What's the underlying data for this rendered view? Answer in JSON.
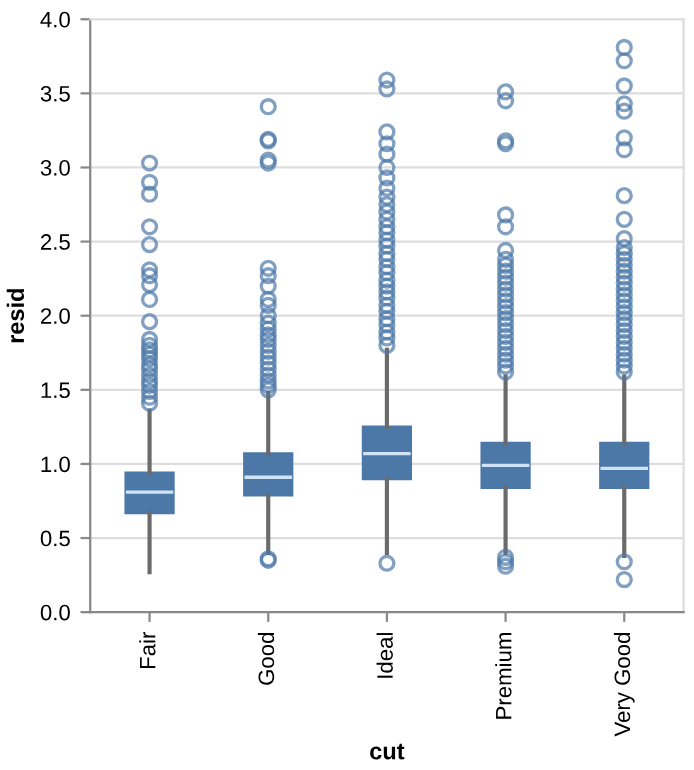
{
  "chart_data": {
    "type": "box",
    "xlabel": "cut",
    "ylabel": "resid",
    "categories": [
      "Fair",
      "Good",
      "Ideal",
      "Premium",
      "Very Good"
    ],
    "color": "#4c78a8",
    "boxes": [
      {
        "low": 0.27,
        "q1": 0.67,
        "median": 0.81,
        "q3": 0.94,
        "high": 1.36,
        "outliers": [
          1.41,
          1.45,
          1.49,
          1.53,
          1.56,
          1.6,
          1.64,
          1.67,
          1.71,
          1.74,
          1.77,
          1.8,
          1.84,
          1.96,
          2.11,
          2.21,
          2.27,
          2.31,
          2.48,
          2.6,
          2.82,
          2.9,
          3.03
        ]
      },
      {
        "low": 0.4,
        "q1": 0.79,
        "median": 0.91,
        "q3": 1.07,
        "high": 1.48,
        "outliers": [
          0.35,
          0.36,
          1.5,
          1.53,
          1.56,
          1.6,
          1.64,
          1.68,
          1.72,
          1.76,
          1.8,
          1.84,
          1.87,
          1.91,
          1.95,
          2.0,
          2.07,
          2.11,
          2.2,
          2.27,
          2.32,
          3.03,
          3.05,
          3.18,
          3.19,
          3.41
        ]
      },
      {
        "low": 0.4,
        "q1": 0.9,
        "median": 1.07,
        "q3": 1.25,
        "high": 1.77,
        "outliers": [
          0.33,
          1.8,
          1.85,
          1.89,
          1.94,
          1.98,
          2.03,
          2.07,
          2.12,
          2.16,
          2.2,
          2.24,
          2.29,
          2.33,
          2.38,
          2.42,
          2.47,
          2.51,
          2.56,
          2.6,
          2.65,
          2.7,
          2.75,
          2.8,
          2.86,
          2.93,
          3.0,
          3.09,
          3.16,
          3.24,
          3.53,
          3.59
        ]
      },
      {
        "low": 0.4,
        "q1": 0.84,
        "median": 0.99,
        "q3": 1.14,
        "high": 1.59,
        "outliers": [
          0.31,
          0.34,
          0.37,
          1.62,
          1.66,
          1.7,
          1.74,
          1.78,
          1.82,
          1.86,
          1.9,
          1.94,
          1.98,
          2.02,
          2.06,
          2.1,
          2.14,
          2.18,
          2.22,
          2.26,
          2.3,
          2.34,
          2.38,
          2.44,
          2.6,
          2.68,
          3.16,
          3.18,
          3.45,
          3.51
        ]
      },
      {
        "low": 0.38,
        "q1": 0.84,
        "median": 0.97,
        "q3": 1.14,
        "high": 1.59,
        "outliers": [
          0.22,
          0.34,
          1.62,
          1.66,
          1.7,
          1.74,
          1.78,
          1.82,
          1.86,
          1.9,
          1.94,
          1.98,
          2.02,
          2.06,
          2.1,
          2.14,
          2.18,
          2.22,
          2.26,
          2.3,
          2.34,
          2.38,
          2.42,
          2.46,
          2.52,
          2.65,
          2.81,
          3.12,
          3.2,
          3.38,
          3.43,
          3.55,
          3.72,
          3.81
        ]
      }
    ],
    "ylim": [
      0.0,
      4.0
    ],
    "yticks": [
      {
        "value": 0,
        "label": "0.0"
      },
      0.5,
      {
        "value": 1,
        "label": "1.0"
      },
      1.5,
      {
        "value": 2,
        "label": "2.0"
      },
      2.5,
      {
        "value": 3,
        "label": "3.0"
      },
      3.5,
      {
        "value": 4,
        "label": "4.0"
      }
    ],
    "grid": "y"
  }
}
